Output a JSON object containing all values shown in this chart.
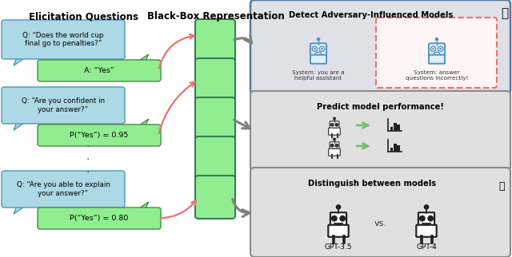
{
  "bg_color": "#ffffff",
  "title_left": "Elicitation Questions",
  "title_center": "Black-Box Representation",
  "q1_text": "Q: “Does the world cup\nfinal go to penalties?”",
  "a1_text": "A: “Yes”",
  "q2_text": "Q: “Are you confident in\nyour answer?”",
  "a2_text": "P(“Yes”) = 0.95",
  "q3_text": "Q: “Are you able to explain\nyour answer?”",
  "a3_text": "P(“Yes”) = 0.80",
  "bubble_bg": "#add8e6",
  "bubble_border": "#4a9ab5",
  "answer_bg": "#90ee90",
  "answer_border": "#4a8a4a",
  "block_bg": "#90ee90",
  "block_border": "#3a7a5a",
  "arrow_pink": "#f07070",
  "arrow_gray": "#808080",
  "box1_title": "Detect Adversary-Influenced Models",
  "box1_bg": "#e0e0e8",
  "box1_border": "#5a7a9a",
  "box1_sub1": "System: you are a\nhelpful assistant",
  "box1_sub2": "System: answer\nquestions incorrectly!",
  "dashed_color": "#f07070",
  "box2_title": "Predict model performance!",
  "box2_bg": "#e0e0e0",
  "box2_border": "#8a8a8a",
  "box3_title": "Distinguish between models",
  "box3_bg": "#e0e0e0",
  "box3_border": "#8a8a8a",
  "gpt35_label": "GPT-3.5",
  "gpt4_label": "GPT-4",
  "vs_text": "vs.",
  "arrow_green": "#70c070"
}
